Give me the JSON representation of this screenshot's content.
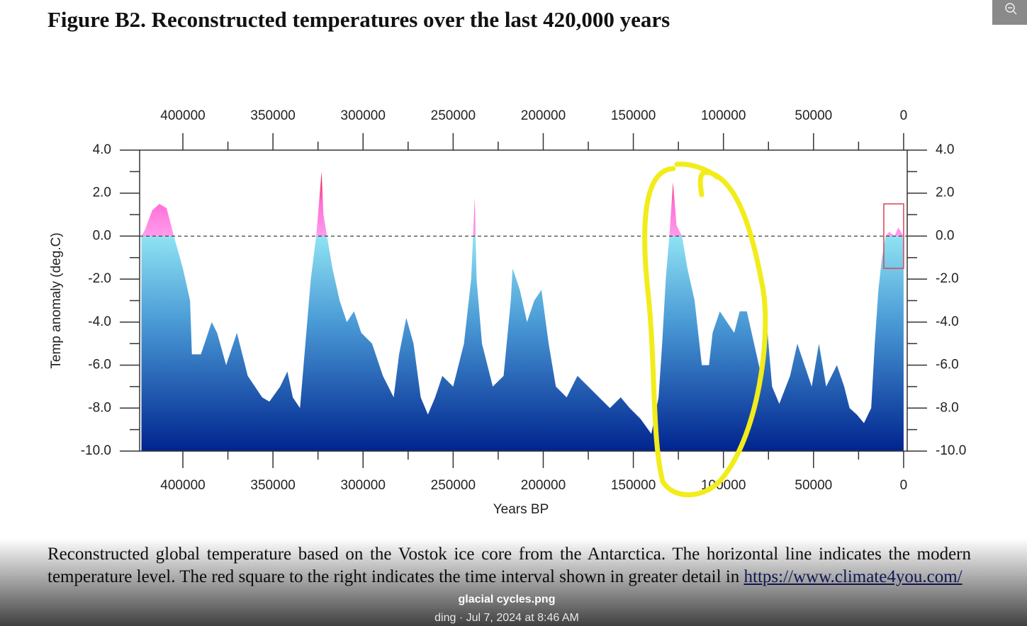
{
  "viewer": {
    "file_name": "glacial cycles.png",
    "meta": "ding · Jul 7, 2024 at 8:46 AM"
  },
  "figure": {
    "title": "Figure B2. Reconstructed temperatures over the last 420,000 years",
    "caption": "Reconstructed global temperature based on the Vostok ice core from the Antarctica. The horizontal line indicates the modern temperature level. The red square to the right indicates the time interval shown in greater detail in",
    "link": "https://www.climate4you.com/"
  },
  "chart_data": {
    "type": "area",
    "x_label": "Years BP",
    "y_label": "Temp anomaly (deg.C)",
    "x": [
      423000,
      421000,
      417000,
      413000,
      409000,
      405000,
      400000,
      396000,
      395000,
      390000,
      384000,
      381000,
      376000,
      370000,
      364000,
      356000,
      352000,
      346000,
      342000,
      339000,
      335000,
      332000,
      329000,
      326000,
      323000,
      322000,
      320000,
      317000,
      313000,
      309000,
      305000,
      301000,
      295000,
      289000,
      283000,
      280000,
      276000,
      272000,
      268000,
      264000,
      260000,
      256000,
      250000,
      244000,
      240000,
      238000,
      237000,
      234000,
      228000,
      222000,
      218000,
      217000,
      213000,
      209000,
      205000,
      201000,
      197000,
      193000,
      187000,
      181000,
      175000,
      169000,
      163000,
      157000,
      152000,
      146000,
      140000,
      136000,
      134000,
      132000,
      130000,
      128000,
      126000,
      123000,
      120000,
      116000,
      112000,
      108000,
      106000,
      102000,
      98000,
      94000,
      91000,
      87000,
      83000,
      79000,
      76000,
      73000,
      69000,
      63000,
      59000,
      55000,
      51000,
      47000,
      43000,
      37000,
      33000,
      30000,
      26000,
      22000,
      18000,
      16000,
      14000,
      12000,
      10000,
      8000,
      5000,
      3000,
      0
    ],
    "values": [
      0,
      0.3,
      1.2,
      1.5,
      1.3,
      0,
      -1.5,
      -3,
      -5.5,
      -5.5,
      -4,
      -4.5,
      -6,
      -4.5,
      -6.5,
      -7.5,
      -7.7,
      -7,
      -6.3,
      -7.5,
      -8,
      -5,
      -2,
      0,
      3,
      1,
      0,
      -1.5,
      -3,
      -4,
      -3.5,
      -4.5,
      -5,
      -6.5,
      -7.5,
      -5.5,
      -3.8,
      -5,
      -7.5,
      -8.3,
      -7.5,
      -6.5,
      -7,
      -5,
      -2,
      1.8,
      -2,
      -5,
      -7,
      -6.5,
      -3,
      -1.5,
      -2.5,
      -4,
      -3,
      -2.5,
      -5,
      -7,
      -7.5,
      -6.5,
      -7,
      -7.5,
      -8,
      -7.5,
      -8,
      -8.5,
      -9.2,
      -7.5,
      -5,
      -2,
      0,
      2.5,
      0.5,
      0,
      -1.5,
      -3,
      -6,
      -6,
      -4.5,
      -3.5,
      -4,
      -4.5,
      -3.5,
      -3.5,
      -5,
      -6.5,
      -4,
      -7,
      -7.8,
      -6.5,
      -5,
      -6,
      -7,
      -5,
      -7,
      -6,
      -7,
      -8,
      -8.3,
      -8.7,
      -8,
      -5,
      -2.5,
      -1,
      0,
      0.2,
      0,
      0.4,
      0
    ],
    "xlim": [
      424000,
      -2000
    ],
    "ylim": [
      -10,
      4
    ],
    "xticks": [
      400000,
      350000,
      300000,
      250000,
      200000,
      150000,
      100000,
      50000,
      0
    ],
    "xminorticks": [
      375000,
      325000,
      275000,
      225000,
      175000,
      125000,
      75000,
      25000
    ],
    "yticks": [
      {
        "value": 4,
        "label": "4.0"
      },
      {
        "value": 2,
        "label": "2.0"
      },
      {
        "value": 0,
        "label": "0.0"
      },
      {
        "value": -2,
        "label": "-2.0"
      },
      {
        "value": -4,
        "label": "-4.0"
      },
      {
        "value": -6,
        "label": "-6.0"
      },
      {
        "value": -8,
        "label": "-8.0"
      },
      {
        "value": -10,
        "label": "-10.0"
      }
    ],
    "yminorticks": [
      3,
      1,
      -1,
      -3,
      -5,
      -7,
      -9
    ],
    "hline": 0,
    "highlight": {
      "x": [
        11000,
        0
      ],
      "y": [
        1.5,
        -1.5
      ],
      "color": "#d9435a"
    },
    "gradient": [
      {
        "value": 3,
        "color": "#e81c2c"
      },
      {
        "value": 1.5,
        "color": "#ff70d8"
      },
      {
        "value": 0,
        "color": "#ff9cec"
      },
      {
        "value": 0,
        "color": "#8fe3f2"
      },
      {
        "value": -4,
        "color": "#4a9ad6"
      },
      {
        "value": -10,
        "color": "#00248f"
      }
    ]
  }
}
